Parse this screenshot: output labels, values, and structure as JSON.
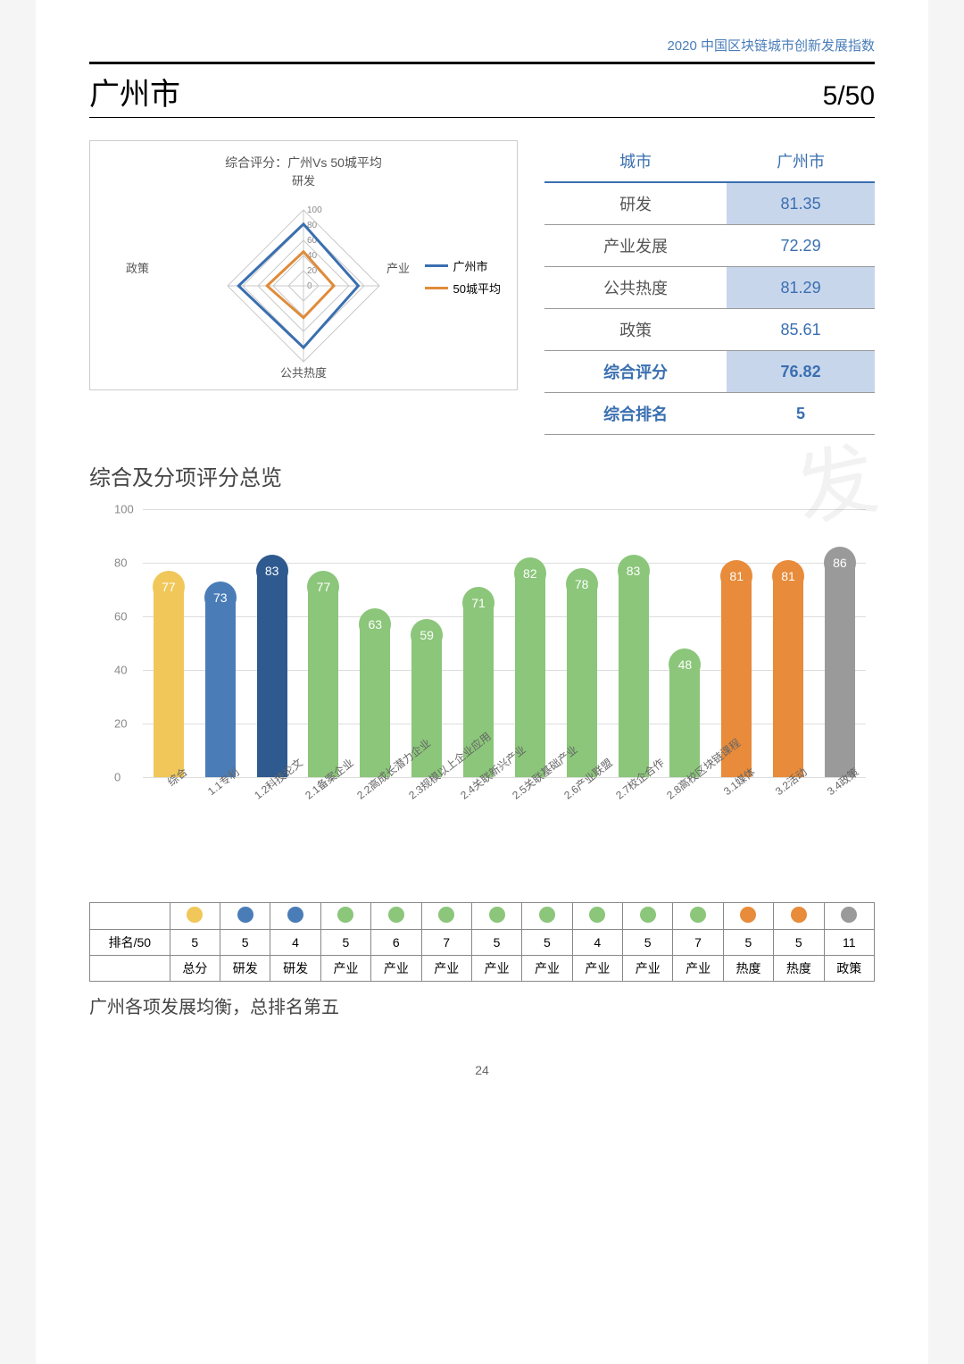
{
  "header": "2020 中国区块链城市创新发展指数",
  "city_name": "广州市",
  "rank_display": "5/50",
  "radar": {
    "title": "综合评分：广州Vs 50城平均",
    "axes": [
      "研发",
      "产业",
      "公共热度",
      "政策"
    ],
    "ticks": [
      0,
      20,
      40,
      60,
      80,
      100
    ],
    "series": [
      {
        "name": "广州市",
        "color": "#3a6fb0",
        "values": [
          81.35,
          72.29,
          81.29,
          85.61
        ]
      },
      {
        "name": "50城平均",
        "color": "#e08b3a",
        "values": [
          45,
          40,
          42,
          48
        ]
      }
    ],
    "axis_color": "#c9c9c9",
    "tick_font": 10
  },
  "score_table": {
    "headers": [
      "城市",
      "广州市"
    ],
    "rows": [
      {
        "label": "研发",
        "value": "81.35",
        "highlight": true
      },
      {
        "label": "产业发展",
        "value": "72.29",
        "highlight": false
      },
      {
        "label": "公共热度",
        "value": "81.29",
        "highlight": true
      },
      {
        "label": "政策",
        "value": "85.61",
        "highlight": false
      },
      {
        "label": "综合评分",
        "value": "76.82",
        "highlight": true,
        "bold": true
      },
      {
        "label": "综合排名",
        "value": "5",
        "highlight": false,
        "bold": true
      }
    ]
  },
  "section2_title": "综合及分项评分总览",
  "bar_chart": {
    "ymax": 100,
    "yticks": [
      0,
      20,
      40,
      60,
      80,
      100
    ],
    "grid_color": "#dddddd",
    "bars": [
      {
        "label": "综合",
        "value": 77,
        "color": "#f0c758"
      },
      {
        "label": "1.1专利",
        "value": 73,
        "color": "#4a7db8"
      },
      {
        "label": "1.2科技论文",
        "value": 83,
        "color": "#2e5a8f"
      },
      {
        "label": "2.1备案企业",
        "value": 77,
        "color": "#8bc67a"
      },
      {
        "label": "2.2高成长潜力企业",
        "value": 63,
        "color": "#8bc67a"
      },
      {
        "label": "2.3规模以上企业应用",
        "value": 59,
        "color": "#8bc67a"
      },
      {
        "label": "2.4关联新兴产业",
        "value": 71,
        "color": "#8bc67a"
      },
      {
        "label": "2.5关联基础产业",
        "value": 82,
        "color": "#8bc67a"
      },
      {
        "label": "2.6产业联盟",
        "value": 78,
        "color": "#8bc67a"
      },
      {
        "label": "2.7校企合作",
        "value": 83,
        "color": "#8bc67a"
      },
      {
        "label": "2.8高校区块链课程",
        "value": 48,
        "color": "#8bc67a"
      },
      {
        "label": "3.1媒体",
        "value": 81,
        "color": "#e88b3a"
      },
      {
        "label": "3.2活动",
        "value": 81,
        "color": "#e88b3a"
      },
      {
        "label": "3.4政策",
        "value": 86,
        "color": "#9a9a9a"
      }
    ]
  },
  "rank_table": {
    "row1_label": "排名/50",
    "colors": [
      "#f0c758",
      "#4a7db8",
      "#4a7db8",
      "#8bc67a",
      "#8bc67a",
      "#8bc67a",
      "#8bc67a",
      "#8bc67a",
      "#8bc67a",
      "#8bc67a",
      "#8bc67a",
      "#e88b3a",
      "#e88b3a",
      "#9a9a9a"
    ],
    "ranks": [
      "5",
      "5",
      "4",
      "5",
      "6",
      "7",
      "5",
      "5",
      "4",
      "5",
      "7",
      "5",
      "5",
      "11"
    ],
    "cats": [
      "总分",
      "研发",
      "研发",
      "产业",
      "产业",
      "产业",
      "产业",
      "产业",
      "产业",
      "产业",
      "产业",
      "热度",
      "热度",
      "政策"
    ]
  },
  "summary_text": "广州各项发展均衡，总排名第五",
  "page_number": "24"
}
